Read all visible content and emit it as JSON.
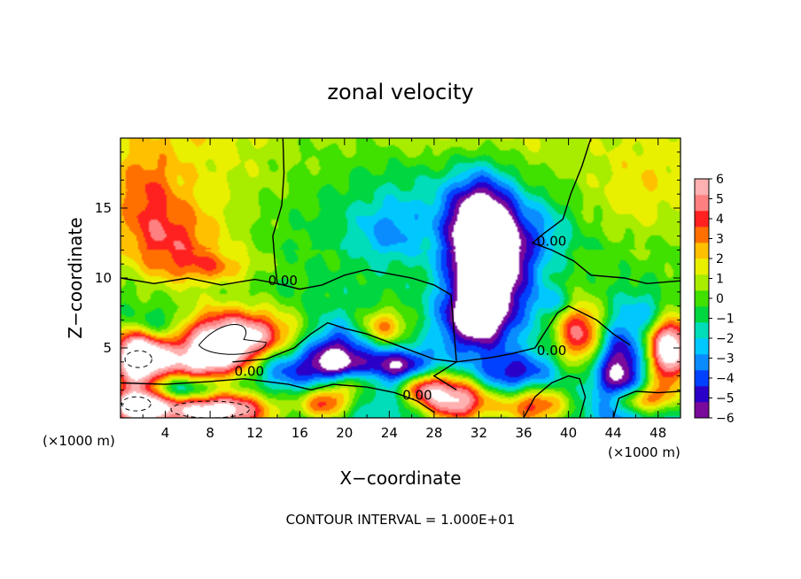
{
  "chart_data": {
    "type": "heatmap",
    "title": "zonal velocity",
    "xlabel": "X−coordinate",
    "ylabel": "Z−coordinate",
    "x_unit_left": "(×1000 m)",
    "x_unit_right": "(×1000 m)",
    "footer": "CONTOUR INTERVAL = 1.000E+01",
    "xlim": [
      0,
      50
    ],
    "ylim": [
      0,
      20
    ],
    "x_ticks": [
      4,
      8,
      12,
      16,
      20,
      24,
      28,
      32,
      36,
      40,
      44,
      48
    ],
    "y_ticks": [
      5,
      10,
      15
    ],
    "colorbar": {
      "range": [
        -6,
        6
      ],
      "ticks": [
        6,
        5,
        4,
        3,
        2,
        1,
        0,
        -1,
        -2,
        -3,
        -4,
        -5,
        -6
      ],
      "colors": [
        "#7a0a9c",
        "#2a00c8",
        "#0040ff",
        "#0a8cff",
        "#00c8ff",
        "#00ddb8",
        "#00d640",
        "#40e000",
        "#a8ec00",
        "#e8f000",
        "#ffc000",
        "#ff7000",
        "#ff2020",
        "#ff8080",
        "#ffb0b0"
      ]
    },
    "contour_labels": [
      {
        "text": "0.00",
        "x": 14.5,
        "y": 9.5
      },
      {
        "text": "0.00",
        "x": 38.5,
        "y": 12.3
      },
      {
        "text": "0.00",
        "x": 11.5,
        "y": 3.0
      },
      {
        "text": "0.00",
        "x": 26.5,
        "y": 1.3
      },
      {
        "text": "0.00",
        "x": 38.5,
        "y": 4.5
      }
    ],
    "blobs": [
      {
        "x": 10,
        "y": 5.5,
        "rx": 6,
        "ry": 2.2,
        "v": 9
      },
      {
        "x": 7,
        "y": 3.8,
        "rx": 4,
        "ry": 1.3,
        "v": 4
      },
      {
        "x": 1.5,
        "y": 4.5,
        "rx": 2.6,
        "ry": 2.3,
        "v": 9
      },
      {
        "x": 1.5,
        "y": 1.0,
        "rx": 2.8,
        "ry": 1.6,
        "v": 9
      },
      {
        "x": 8.5,
        "y": 0.5,
        "rx": 5.5,
        "ry": 1.5,
        "v": 9
      },
      {
        "x": 18.5,
        "y": 1.2,
        "rx": 2.4,
        "ry": 1.4,
        "v": 7
      },
      {
        "x": 21,
        "y": 2.6,
        "rx": 2.5,
        "ry": 1.0,
        "v": 4
      },
      {
        "x": 23.5,
        "y": 6.5,
        "rx": 2.2,
        "ry": 1.3,
        "v": 4
      },
      {
        "x": 30,
        "y": 1.3,
        "rx": 3.2,
        "ry": 1.8,
        "v": 8
      },
      {
        "x": 27,
        "y": 2.3,
        "rx": 2.0,
        "ry": 1.2,
        "v": 5
      },
      {
        "x": 37,
        "y": 0.9,
        "rx": 3.2,
        "ry": 1.6,
        "v": 6
      },
      {
        "x": 41,
        "y": 6.0,
        "rx": 2.2,
        "ry": 2.6,
        "v": 6
      },
      {
        "x": 46.5,
        "y": 1.3,
        "rx": 2.6,
        "ry": 1.0,
        "v": 5
      },
      {
        "x": 49,
        "y": 5,
        "rx": 2.0,
        "ry": 3.0,
        "v": 9
      },
      {
        "x": 19,
        "y": 4,
        "rx": 3.0,
        "ry": 2.5,
        "v": -6
      },
      {
        "x": 14,
        "y": 3.8,
        "rx": 3.0,
        "ry": 1.6,
        "v": -4
      },
      {
        "x": 25,
        "y": 3.6,
        "rx": 3.5,
        "ry": 1.3,
        "v": -5
      },
      {
        "x": 31.5,
        "y": 7,
        "rx": 3.0,
        "ry": 2.2,
        "v": -5
      },
      {
        "x": 33,
        "y": 11.5,
        "rx": 3.6,
        "ry": 4.5,
        "v": -9
      },
      {
        "x": 32,
        "y": 14,
        "rx": 2.8,
        "ry": 4.0,
        "v": -4
      },
      {
        "x": 3,
        "y": 6.5,
        "rx": 3.0,
        "ry": 1.4,
        "v": -4
      },
      {
        "x": 4.5,
        "y": 2.0,
        "rx": 4.5,
        "ry": 0.9,
        "v": -4
      },
      {
        "x": 35,
        "y": 3.0,
        "rx": 4.0,
        "ry": 1.5,
        "v": -4
      },
      {
        "x": 44.5,
        "y": 3.5,
        "rx": 2.2,
        "ry": 3.0,
        "v": -5
      },
      {
        "x": 39,
        "y": 8.3,
        "rx": 2.0,
        "ry": 1.0,
        "v": -2
      },
      {
        "x": 48,
        "y": 7.5,
        "rx": 2.5,
        "ry": 1.5,
        "v": -3
      },
      {
        "x": 4,
        "y": 12.5,
        "rx": 4.5,
        "ry": 3.0,
        "v": 3.5
      },
      {
        "x": 2,
        "y": 16.5,
        "rx": 3.0,
        "ry": 3.0,
        "v": 2.2
      },
      {
        "x": 8.5,
        "y": 10.8,
        "rx": 4.0,
        "ry": 1.2,
        "v": 2.5
      },
      {
        "x": 27,
        "y": 15.5,
        "rx": 6.5,
        "ry": 3.5,
        "v": -2.2
      },
      {
        "x": 24,
        "y": 13,
        "rx": 3.0,
        "ry": 2.0,
        "v": -2.0
      },
      {
        "x": 46,
        "y": 16,
        "rx": 4.5,
        "ry": 4.0,
        "v": 1.8
      },
      {
        "x": 38,
        "y": 13.5,
        "rx": 2.6,
        "ry": 2.5,
        "v": -1.8
      }
    ],
    "zero_contours": [
      [
        [
          0,
          10.0
        ],
        [
          3,
          9.6
        ],
        [
          6,
          10.0
        ],
        [
          9,
          9.5
        ],
        [
          12,
          9.9
        ],
        [
          14,
          9.6
        ],
        [
          16,
          9.2
        ],
        [
          18,
          9.5
        ],
        [
          20,
          10.2
        ],
        [
          22,
          10.6
        ],
        [
          24,
          10.3
        ],
        [
          26,
          10.0
        ],
        [
          28,
          9.5
        ],
        [
          29.5,
          8.8
        ]
      ],
      [
        [
          29.5,
          8.8
        ],
        [
          30,
          4.0
        ],
        [
          29,
          3.5
        ],
        [
          28,
          3.0
        ],
        [
          30,
          2.0
        ]
      ],
      [
        [
          14,
          9.6
        ],
        [
          13.8,
          11
        ],
        [
          13.6,
          13
        ],
        [
          14.4,
          15.2
        ],
        [
          14.6,
          17.5
        ],
        [
          14.5,
          20
        ]
      ],
      [
        [
          42,
          20
        ],
        [
          41.2,
          18
        ],
        [
          40.2,
          16
        ],
        [
          39.5,
          14.2
        ],
        [
          37.5,
          13.0
        ],
        [
          36.8,
          12.5
        ],
        [
          38.5,
          12.0
        ],
        [
          40.5,
          11.2
        ],
        [
          42,
          10.2
        ],
        [
          45,
          10.0
        ],
        [
          47,
          9.6
        ],
        [
          50,
          9.8
        ]
      ],
      [
        [
          0,
          2.5
        ],
        [
          4,
          2.4
        ],
        [
          8,
          2.6
        ],
        [
          11,
          2.8
        ],
        [
          13,
          2.6
        ],
        [
          15,
          2.4
        ],
        [
          17,
          2.0
        ],
        [
          19,
          2.4
        ],
        [
          22,
          2.2
        ],
        [
          24.5,
          1.8
        ],
        [
          26.5,
          1.2
        ],
        [
          28,
          0.4
        ]
      ],
      [
        [
          10,
          4.0
        ],
        [
          13,
          4.2
        ],
        [
          15.5,
          5.0
        ],
        [
          17,
          6.0
        ],
        [
          18.5,
          6.8
        ],
        [
          20,
          6.4
        ],
        [
          22,
          6.0
        ],
        [
          24,
          5.4
        ],
        [
          26,
          4.8
        ],
        [
          28,
          4.2
        ],
        [
          30,
          4.0
        ],
        [
          33,
          4.3
        ],
        [
          35,
          4.6
        ],
        [
          37,
          5.0
        ],
        [
          39,
          7.5
        ],
        [
          40,
          8.0
        ],
        [
          41,
          7.6
        ],
        [
          42.5,
          7.0
        ],
        [
          44,
          6.0
        ],
        [
          45.5,
          5.2
        ]
      ],
      [
        [
          36,
          0
        ],
        [
          37,
          1.5
        ],
        [
          38.5,
          2.5
        ],
        [
          40,
          3.0
        ],
        [
          41,
          2.8
        ],
        [
          41.5,
          1.5
        ],
        [
          41,
          0
        ]
      ],
      [
        [
          44,
          0
        ],
        [
          44.5,
          1.4
        ],
        [
          46,
          1.9
        ],
        [
          48,
          1.8
        ],
        [
          50,
          1.9
        ]
      ]
    ]
  }
}
